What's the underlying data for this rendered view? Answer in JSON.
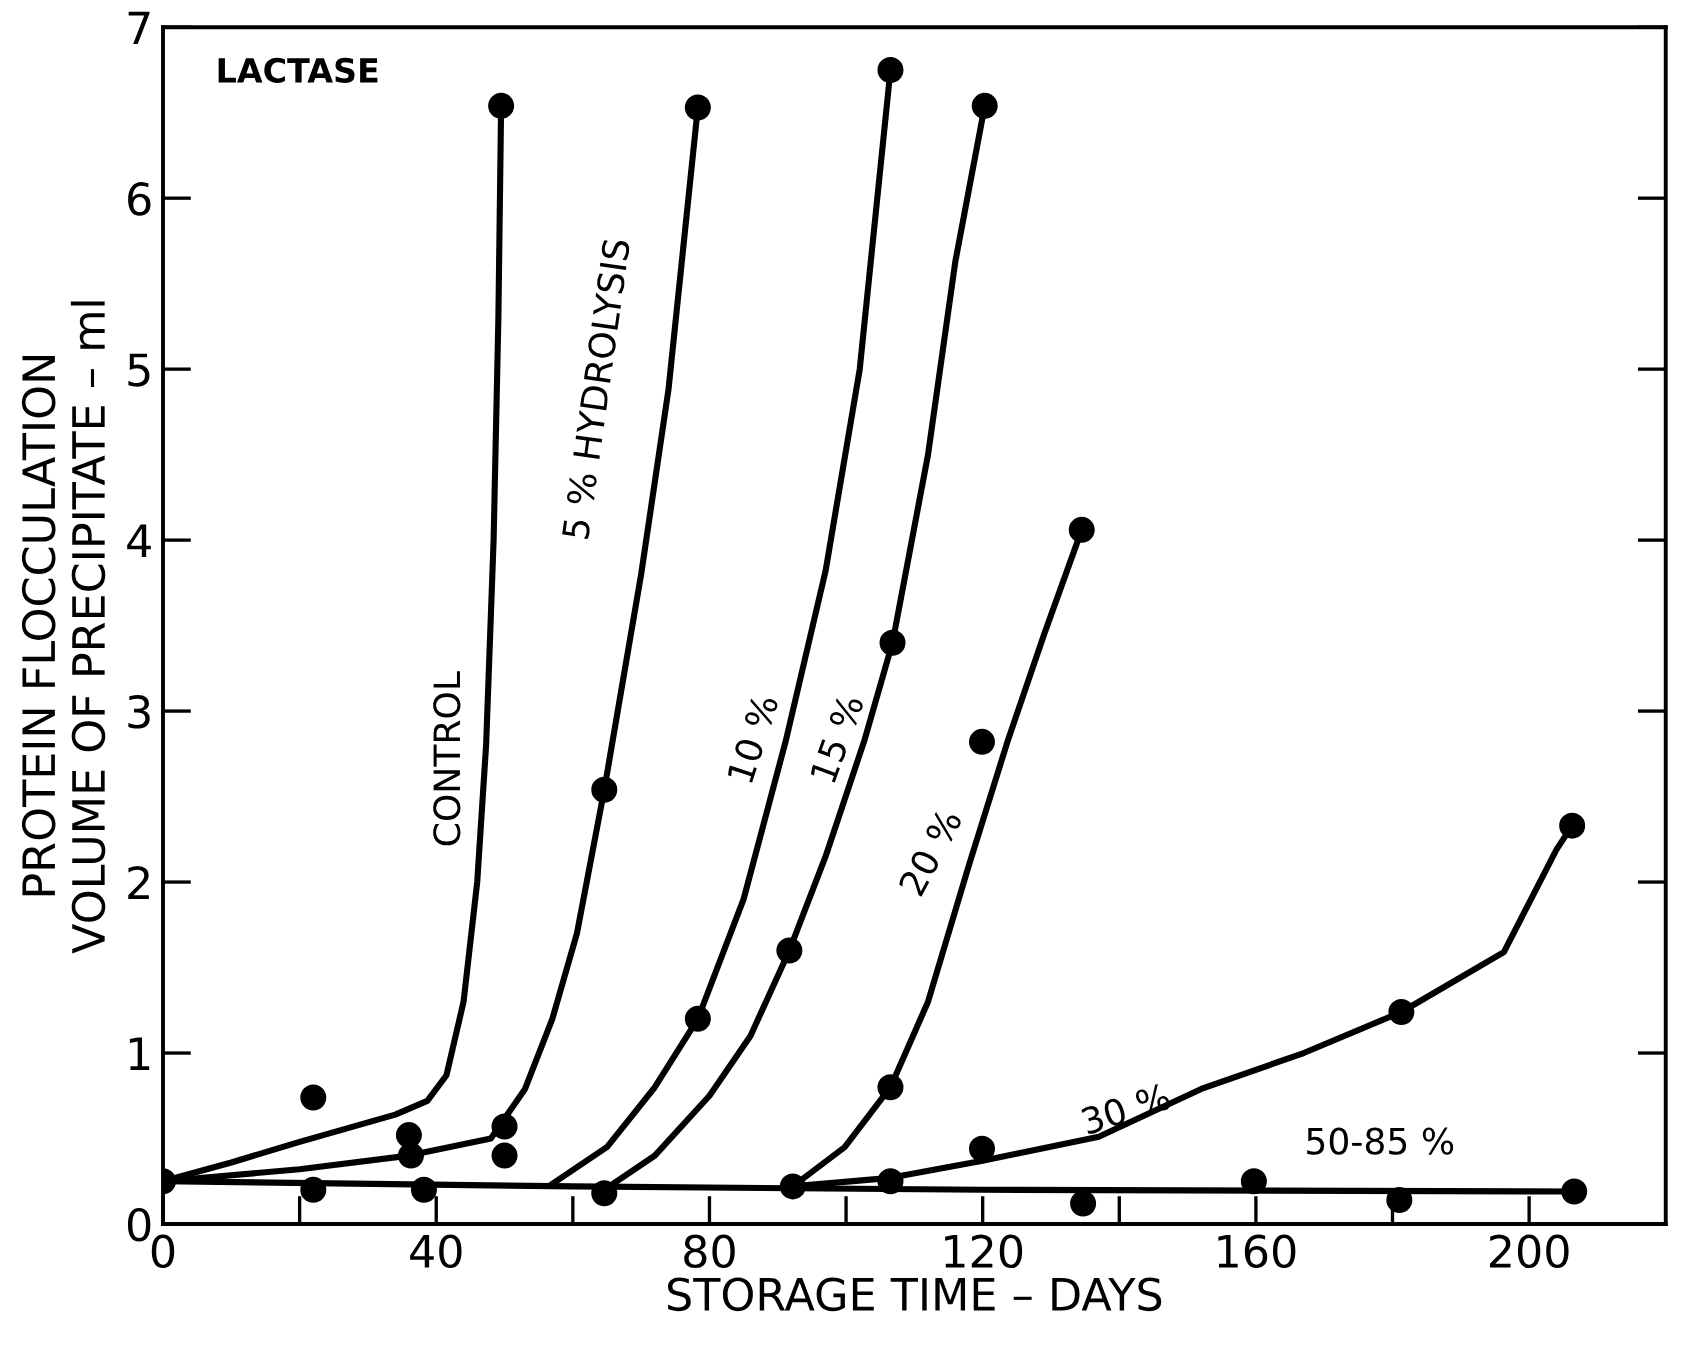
{
  "chart_data": {
    "type": "line",
    "title": "LACTASE",
    "xlabel": "STORAGE TIME – DAYS",
    "ylabel": "PROTEIN FLOCCULATION\nVOLUME OF PRECIPITATE – ml",
    "xlim": [
      0,
      220
    ],
    "ylim": [
      0,
      7
    ],
    "xticks": [
      0,
      {
        "value": 20,
        "label": null
      },
      40,
      {
        "value": 60,
        "label": null
      },
      80,
      {
        "value": 100,
        "label": null
      },
      120,
      {
        "value": 140,
        "label": null
      },
      160,
      {
        "value": 180,
        "label": null
      },
      200
    ],
    "yticks": [
      0,
      1,
      2,
      3,
      4,
      5,
      6,
      7
    ],
    "series": [
      {
        "name": "CONTROL",
        "color": "#000000",
        "marker": "none",
        "x": [
          0,
          10,
          20,
          34,
          38.7,
          41.5,
          44,
          46,
          47.3,
          48.4,
          49.1,
          49.5
        ],
        "values": [
          0.25,
          0.36,
          0.48,
          0.64,
          0.72,
          0.87,
          1.3,
          2.0,
          2.8,
          4.0,
          5.3,
          6.54
        ]
      },
      {
        "name": "5 % HYDROLYSIS",
        "color": "#000000",
        "marker": "none",
        "x": [
          0,
          20,
          36,
          48,
          53,
          57,
          60.6,
          64.6,
          70,
          74,
          78.3
        ],
        "values": [
          0.25,
          0.32,
          0.4,
          0.5,
          0.79,
          1.2,
          1.7,
          2.54,
          3.8,
          4.88,
          6.53
        ]
      },
      {
        "name": "10 %",
        "color": "#000000",
        "marker": "none",
        "x": [
          56.8,
          65,
          72,
          78.3,
          85,
          91.2,
          97,
          102,
          106.5
        ],
        "values": [
          0.23,
          0.45,
          0.8,
          1.2,
          1.9,
          2.83,
          3.82,
          5.0,
          6.75
        ]
      },
      {
        "name": "15 %",
        "color": "#000000",
        "marker": "none",
        "x": [
          64.6,
          72,
          80,
          86,
          91.7,
          97,
          102.7,
          106.8,
          112,
          116,
          120.3
        ],
        "values": [
          0.2,
          0.4,
          0.75,
          1.1,
          1.6,
          2.15,
          2.83,
          3.4,
          4.5,
          5.63,
          6.54
        ]
      },
      {
        "name": "20 %",
        "color": "#000000",
        "marker": "none",
        "x": [
          92.2,
          99.8,
          106.5,
          112,
          118,
          123.7,
          129,
          134.5
        ],
        "values": [
          0.22,
          0.45,
          0.8,
          1.3,
          2.1,
          2.83,
          3.45,
          4.06
        ]
      },
      {
        "name": "30 %",
        "color": "#000000",
        "marker": "none",
        "x": [
          92.2,
          106.5,
          120,
          137,
          152,
          167,
          181.3,
          196.3,
          204,
          206.3
        ],
        "values": [
          0.22,
          0.27,
          0.37,
          0.51,
          0.79,
          1.0,
          1.24,
          1.59,
          2.19,
          2.33
        ]
      },
      {
        "name": "50-85 %",
        "color": "#000000",
        "marker": "none",
        "x": [
          0,
          60,
          120,
          206.6
        ],
        "values": [
          0.25,
          0.22,
          0.2,
          0.19
        ]
      },
      {
        "type": "scatter",
        "color": "#000000",
        "marker": "circle",
        "x": [
          0,
          22,
          22,
          36,
          36.3,
          38.2,
          49.5,
          50,
          50,
          64.6,
          64.6,
          78.3,
          78.3,
          91.7,
          92.2,
          106.5,
          106.8,
          106.5,
          106.5,
          119.9,
          120.3,
          119.9,
          134.5,
          134.7,
          159.7,
          181.3,
          181,
          206.3,
          206.6
        ],
        "values": [
          0.25,
          0.74,
          0.2,
          0.52,
          0.4,
          0.2,
          6.54,
          0.57,
          0.4,
          2.54,
          0.18,
          6.53,
          1.2,
          1.6,
          0.22,
          6.75,
          3.4,
          0.8,
          0.25,
          2.82,
          6.54,
          0.44,
          4.06,
          0.12,
          0.25,
          1.24,
          0.14,
          2.33,
          0.19
        ]
      }
    ]
  }
}
